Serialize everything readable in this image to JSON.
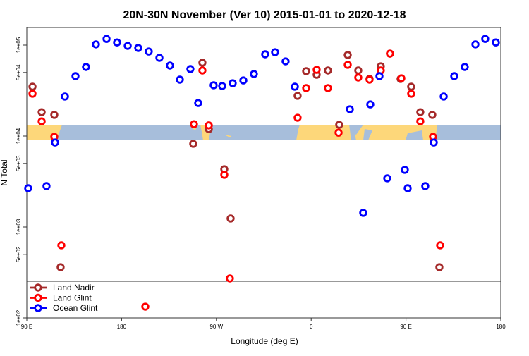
{
  "chart_data": {
    "type": "scatter",
    "title": "20N-30N November (Ver 10)   2015-01-01 to 2020-12-18",
    "xlabel": "Longitude (deg E)",
    "ylabel": "N Total",
    "x_note": "x values are unwrapped longitude in degrees (90 = 90 E, 180 = 180, 270 = 90 W, 360 = 0, 450 = 90 E, 540 = 180)",
    "xlim": [
      90,
      540
    ],
    "ylim": [
      100,
      156000
    ],
    "yscale": "log",
    "x_ticks": [
      {
        "value": 90,
        "label": "90 E"
      },
      {
        "value": 180,
        "label": "180"
      },
      {
        "value": 270,
        "label": "90 W"
      },
      {
        "value": 360,
        "label": "0"
      },
      {
        "value": 450,
        "label": "90 E"
      },
      {
        "value": 540,
        "label": "180"
      }
    ],
    "y_ticks": [
      {
        "value": 100,
        "label": "1e+02"
      },
      {
        "value": 500,
        "label": "5e+02"
      },
      {
        "value": 1000,
        "label": "1e+03"
      },
      {
        "value": 5000,
        "label": "5e+03"
      },
      {
        "value": 10000,
        "label": "1e+04"
      },
      {
        "value": 50000,
        "label": "5e+04"
      },
      {
        "value": 100000,
        "label": "1e+05"
      }
    ],
    "legend_placement": "bottom-left",
    "series": [
      {
        "name": "Land Nadir",
        "color": "#a52a2a",
        "points": [
          [
            95.4,
            34900
          ],
          [
            104.1,
            18300
          ],
          [
            116.1,
            17100
          ],
          [
            122.1,
            361
          ],
          [
            248.0,
            8220
          ],
          [
            256.7,
            64000
          ],
          [
            262.8,
            11900
          ],
          [
            277.5,
            4320
          ],
          [
            283.5,
            1240
          ],
          [
            347.1,
            27700
          ],
          [
            355.2,
            51700
          ],
          [
            365.2,
            47200
          ],
          [
            375.9,
            52600
          ],
          [
            386.6,
            13300
          ],
          [
            394.7,
            77900
          ],
          [
            404.7,
            52600
          ],
          [
            415.4,
            42500
          ],
          [
            426.1,
            58500
          ],
          [
            434.8,
            80700
          ],
          [
            444.9,
            42500
          ],
          [
            454.9,
            34900
          ],
          [
            463.6,
            18300
          ],
          [
            475.0,
            17100
          ],
          [
            481.7,
            361
          ]
        ]
      },
      {
        "name": "Land Glint",
        "color": "#ff0000",
        "points": [
          [
            95.4,
            29200
          ],
          [
            104.1,
            14500
          ],
          [
            116.1,
            9820
          ],
          [
            122.8,
            629
          ],
          [
            202.5,
            133
          ],
          [
            248.7,
            13500
          ],
          [
            256.7,
            52600
          ],
          [
            262.8,
            13100
          ],
          [
            277.5,
            3750
          ],
          [
            282.8,
            272
          ],
          [
            347.1,
            15900
          ],
          [
            355.2,
            33700
          ],
          [
            365.2,
            53500
          ],
          [
            375.9,
            33700
          ],
          [
            386.0,
            10900
          ],
          [
            394.7,
            60700
          ],
          [
            404.7,
            44000
          ],
          [
            415.4,
            41700
          ],
          [
            426.1,
            52600
          ],
          [
            434.8,
            80700
          ],
          [
            445.6,
            43200
          ],
          [
            454.9,
            29200
          ],
          [
            463.6,
            14500
          ],
          [
            475.7,
            9820
          ],
          [
            482.4,
            629
          ]
        ]
      },
      {
        "name": "Ocean Glint",
        "color": "#0000ff",
        "points": [
          [
            91.3,
            2670
          ],
          [
            108.7,
            2820
          ],
          [
            116.8,
            8510
          ],
          [
            126.2,
            27200
          ],
          [
            136.2,
            45600
          ],
          [
            146.2,
            57500
          ],
          [
            155.6,
            102000
          ],
          [
            165.7,
            117000
          ],
          [
            175.7,
            107000
          ],
          [
            185.8,
            98200
          ],
          [
            195.8,
            93100
          ],
          [
            205.8,
            85100
          ],
          [
            215.9,
            72500
          ],
          [
            225.9,
            59600
          ],
          [
            235.3,
            41700
          ],
          [
            245.3,
            54500
          ],
          [
            252.7,
            23100
          ],
          [
            267.4,
            36200
          ],
          [
            275.5,
            35500
          ],
          [
            285.5,
            38100
          ],
          [
            295.6,
            40900
          ],
          [
            305.6,
            48100
          ],
          [
            316.3,
            79300
          ],
          [
            325.7,
            83600
          ],
          [
            335.7,
            66300
          ],
          [
            344.5,
            34900
          ],
          [
            396.7,
            19700
          ],
          [
            409.4,
            1430
          ],
          [
            416.1,
            22300
          ],
          [
            424.8,
            45600
          ],
          [
            432.2,
            3430
          ],
          [
            448.9,
            4250
          ],
          [
            451.6,
            2670
          ],
          [
            468.3,
            2820
          ],
          [
            476.4,
            8510
          ],
          [
            485.8,
            27200
          ],
          [
            495.8,
            45600
          ],
          [
            505.8,
            57500
          ],
          [
            515.9,
            102000
          ],
          [
            525.2,
            117000
          ],
          [
            535.3,
            107000
          ]
        ]
      }
    ],
    "map_band": {
      "ocean_color": "#a7bedb",
      "land_color": "#fdd77a",
      "latitude_range": "20N-30N"
    }
  }
}
